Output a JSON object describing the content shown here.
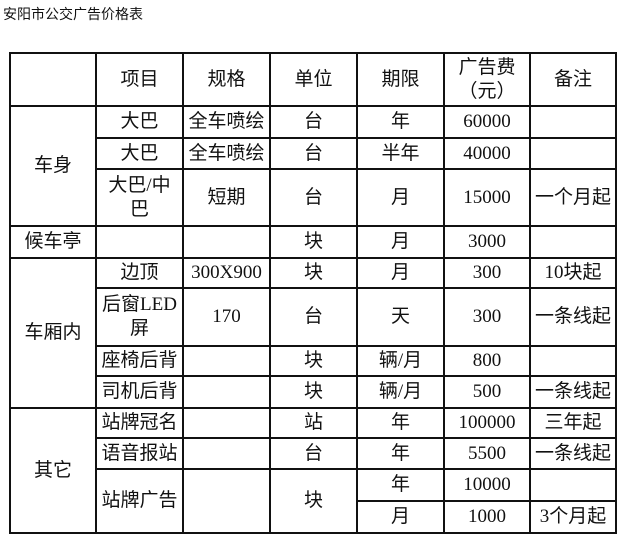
{
  "title": "安阳市公交广告价格表",
  "header": [
    "",
    "项目",
    "规格",
    "单位",
    "期限",
    "广告费（元）",
    "备注"
  ],
  "groups": {
    "body": "车身",
    "shelter": "候车亭",
    "interior": "车厢内",
    "other": "其它"
  },
  "rows": [
    {
      "item": "大巴",
      "spec": "全车喷绘",
      "unit": "台",
      "period": "年",
      "fee": "60000",
      "note": ""
    },
    {
      "item": "大巴",
      "spec": "全车喷绘",
      "unit": "台",
      "period": "半年",
      "fee": "40000",
      "note": ""
    },
    {
      "item": "大巴/中巴",
      "spec": "短期",
      "unit": "台",
      "period": "月",
      "fee": "15000",
      "note": "一个月起"
    },
    {
      "item": "",
      "spec": "",
      "unit": "块",
      "period": "月",
      "fee": "3000",
      "note": ""
    },
    {
      "item": "边顶",
      "spec": "300X900",
      "unit": "块",
      "period": "月",
      "fee": "300",
      "note": "10块起"
    },
    {
      "item": "后窗LED屏",
      "spec": "170",
      "unit": "台",
      "period": "天",
      "fee": "300",
      "note": "一条线起"
    },
    {
      "item": "座椅后背",
      "spec": "",
      "unit": "块",
      "period": "辆/月",
      "fee": "800",
      "note": ""
    },
    {
      "item": "司机后背",
      "spec": "",
      "unit": "块",
      "period": "辆/月",
      "fee": "500",
      "note": "一条线起"
    },
    {
      "item": "站牌冠名",
      "spec": "",
      "unit": "站",
      "period": "年",
      "fee": "100000",
      "note": "三年起"
    },
    {
      "item": "语音报站",
      "spec": "",
      "unit": "台",
      "period": "年",
      "fee": "5500",
      "note": "一条线起"
    },
    {
      "item": "站牌广告",
      "spec": "",
      "unit": "块",
      "period": "年",
      "fee": "10000",
      "note": ""
    },
    {
      "item": "",
      "spec": "",
      "unit": "",
      "period": "月",
      "fee": "1000",
      "note": "3个月起"
    }
  ]
}
